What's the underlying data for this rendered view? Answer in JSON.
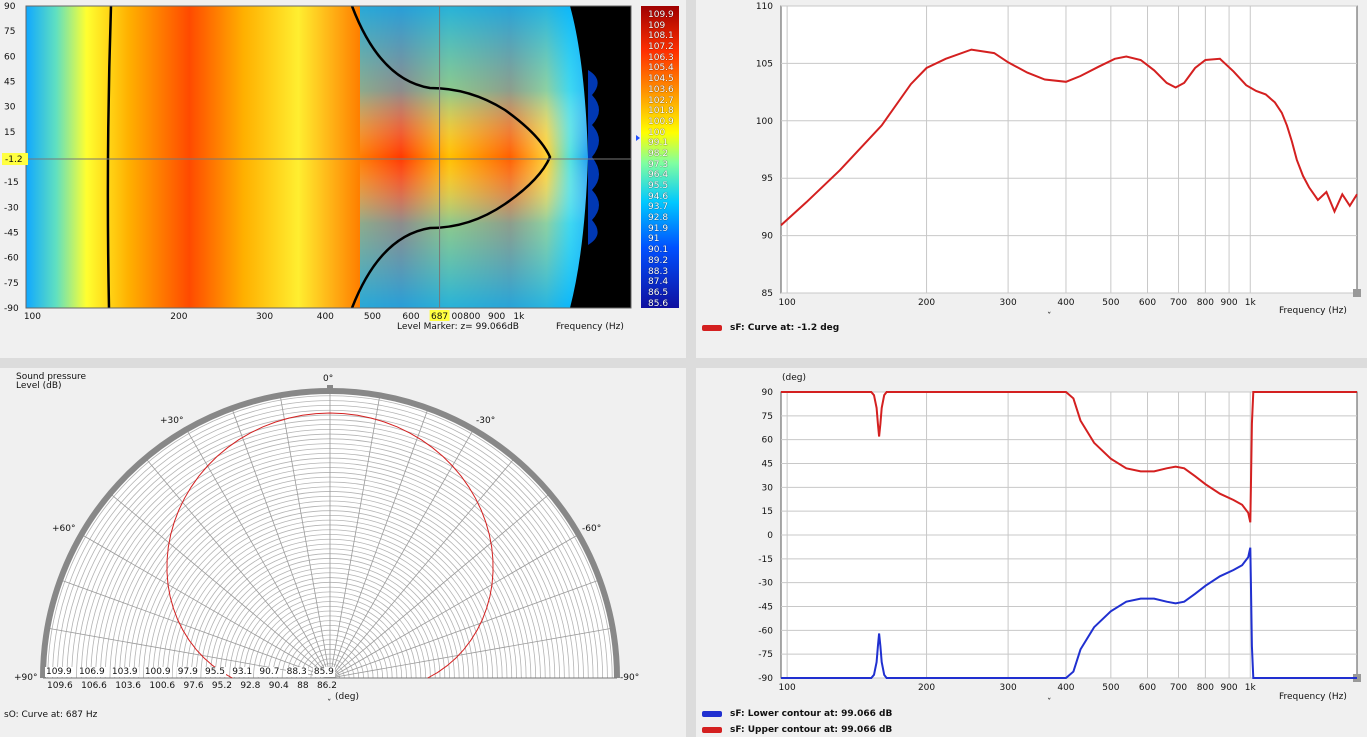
{
  "heatmap": {
    "y_ticks": [
      "90",
      "75",
      "60",
      "45",
      "30",
      "15",
      "-15",
      "-30",
      "-45",
      "-60",
      "-75",
      "-90"
    ],
    "y_tick_values": [
      90,
      75,
      60,
      45,
      30,
      15,
      -15,
      -30,
      -45,
      -60,
      -75,
      -90
    ],
    "x_ticks": [
      "100",
      "200",
      "300",
      "400",
      "500",
      "600",
      "800",
      "900",
      "1k"
    ],
    "x_tick_values": [
      100,
      200,
      300,
      400,
      500,
      600,
      800,
      900,
      1000
    ],
    "x_tick_partial": "00",
    "marker_x_label": "687",
    "marker_y_label": "-1.2",
    "marker_x": 687,
    "marker_y": -1.2,
    "level_marker_text": "Level Marker:  z= 99.066dB",
    "freq_label": "Frequency  (Hz)",
    "colorbar": [
      "109.9",
      "109",
      "108.1",
      "107.2",
      "106.3",
      "105.4",
      "104.5",
      "103.6",
      "102.7",
      "101.8",
      "100.9",
      "100",
      "99.1",
      "98.2",
      "97.3",
      "96.4",
      "95.5",
      "94.6",
      "93.7",
      "92.8",
      "91.9",
      "91",
      "90.1",
      "89.2",
      "88.3",
      "87.4",
      "86.5",
      "85.6"
    ]
  },
  "polar": {
    "title_line1": "Sound pressure",
    "title_line2": "Level  (dB)",
    "angle_labels": {
      "top": "0°",
      "p30": "+30°",
      "m30": "-30°",
      "p60": "+60°",
      "m60": "-60°",
      "p90": "+90°",
      "m90": "-90°"
    },
    "radial_labels_row1": [
      "109.9",
      "106.9",
      "103.9",
      "100.9",
      "97.9",
      "95.5",
      "93.1",
      "90.7",
      "88.3",
      "85.9"
    ],
    "radial_labels_row2": [
      "109.6",
      "106.6",
      "103.6",
      "100.6",
      "97.6",
      "95.2",
      "92.8",
      "90.4",
      "88",
      "86.2"
    ],
    "deg_label": "(deg)",
    "caption": "sO: Curve at: 687 Hz"
  },
  "chart_data": [
    {
      "type": "line",
      "title": "",
      "xlabel": "Frequency  (Hz)",
      "ylabel": "",
      "x_scale": "log",
      "xlim": [
        97,
        1700
      ],
      "ylim": [
        85,
        110
      ],
      "x_ticks": [
        "100",
        "200",
        "300",
        "400",
        "500",
        "600",
        "700",
        "800",
        "900",
        "1k"
      ],
      "x_tick_values": [
        100,
        200,
        300,
        400,
        500,
        600,
        700,
        800,
        900,
        1000
      ],
      "y_ticks": [
        "110",
        "105",
        "100",
        "95",
        "90",
        "85"
      ],
      "y_tick_values": [
        110,
        105,
        100,
        95,
        90,
        85
      ],
      "grid": true,
      "series": [
        {
          "name": "sF: Curve at: -1.2 deg",
          "color": "#d42020",
          "x": [
            97,
            110,
            130,
            160,
            185,
            200,
            220,
            250,
            280,
            300,
            330,
            360,
            400,
            430,
            470,
            510,
            540,
            580,
            620,
            660,
            690,
            720,
            760,
            800,
            860,
            920,
            980,
            1030,
            1080,
            1130,
            1170,
            1200,
            1230,
            1260,
            1300,
            1340,
            1400,
            1460,
            1520,
            1580,
            1640,
            1700
          ],
          "y": [
            90.9,
            92.9,
            95.7,
            99.6,
            103.2,
            104.6,
            105.4,
            106.2,
            105.9,
            105.1,
            104.2,
            103.6,
            103.4,
            103.9,
            104.7,
            105.4,
            105.6,
            105.3,
            104.4,
            103.3,
            102.9,
            103.3,
            104.6,
            105.3,
            105.4,
            104.3,
            103.1,
            102.6,
            102.3,
            101.6,
            100.7,
            99.6,
            98.2,
            96.6,
            95.2,
            94.2,
            93.1,
            93.8,
            92.1,
            93.6,
            92.6,
            93.6
          ]
        }
      ]
    },
    {
      "type": "line",
      "title": "",
      "xlabel": "Frequency  (Hz)",
      "ylabel": "(deg)",
      "x_scale": "log",
      "xlim": [
        97,
        1700
      ],
      "ylim": [
        -90,
        90
      ],
      "x_ticks": [
        "100",
        "200",
        "300",
        "400",
        "500",
        "600",
        "700",
        "800",
        "900",
        "1k"
      ],
      "x_tick_values": [
        100,
        200,
        300,
        400,
        500,
        600,
        700,
        800,
        900,
        1000
      ],
      "y_ticks": [
        "90",
        "75",
        "60",
        "45",
        "30",
        "15",
        "0",
        "-15",
        "-30",
        "-45",
        "-60",
        "-75",
        "-90"
      ],
      "y_tick_values": [
        90,
        75,
        60,
        45,
        30,
        15,
        0,
        -15,
        -30,
        -45,
        -60,
        -75,
        -90
      ],
      "grid": true,
      "series": [
        {
          "name": "sF: Lower contour at: 99.066 dB",
          "color": "#2030d0",
          "x": [
            97,
            150,
            152,
            154,
            156,
            157,
            158,
            159,
            160,
            162,
            164,
            166,
            400,
            415,
            430,
            460,
            500,
            540,
            580,
            620,
            660,
            690,
            720,
            760,
            800,
            860,
            920,
            960,
            990,
            1000,
            1003,
            1008,
            1015,
            1700
          ],
          "y": [
            -90,
            -90,
            -90,
            -88,
            -80,
            -70,
            -62,
            -70,
            -80,
            -88,
            -90,
            -90,
            -90,
            -86,
            -72,
            -58,
            -48,
            -42,
            -40,
            -40,
            -42,
            -43,
            -42,
            -37,
            -32,
            -26,
            -22,
            -19,
            -14,
            -8,
            -30,
            -70,
            -90,
            -90
          ]
        },
        {
          "name": "sF: Upper contour at: 99.066 dB",
          "color": "#d42020",
          "x": [
            97,
            150,
            152,
            154,
            156,
            157,
            158,
            159,
            160,
            162,
            164,
            166,
            400,
            415,
            430,
            460,
            500,
            540,
            580,
            620,
            660,
            690,
            720,
            760,
            800,
            860,
            920,
            960,
            990,
            1000,
            1003,
            1008,
            1015,
            1700
          ],
          "y": [
            90,
            90,
            90,
            88,
            80,
            70,
            62,
            70,
            80,
            88,
            90,
            90,
            90,
            86,
            72,
            58,
            48,
            42,
            40,
            40,
            42,
            43,
            42,
            37,
            32,
            26,
            22,
            19,
            14,
            8,
            30,
            70,
            90,
            90
          ]
        }
      ]
    }
  ]
}
